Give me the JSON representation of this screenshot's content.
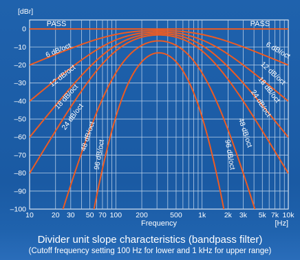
{
  "chart_data": {
    "type": "line",
    "ylabel": "[dBr]",
    "xlabel": "Frequency",
    "xunit": "[Hz]",
    "xscale": "log",
    "xlim": [
      10,
      10000
    ],
    "ylim": [
      -100,
      5
    ],
    "grid": true,
    "yticks": [
      0,
      -10,
      -20,
      -30,
      -40,
      -50,
      -60,
      -70,
      -80,
      -90,
      -100
    ],
    "yticklabels": [
      "0",
      "–10",
      "–20",
      "–30",
      "–40",
      "–50",
      "–60",
      "–70",
      "–80",
      "–90",
      "–100"
    ],
    "xticks": [
      10,
      20,
      30,
      50,
      70,
      100,
      200,
      500,
      1000,
      2000,
      3000,
      5000,
      7000,
      10000
    ],
    "xticklabels": [
      "10",
      "20",
      "30",
      "50",
      "70",
      "100",
      "200",
      "500",
      "1k",
      "2k",
      "3k",
      "5k",
      "7k",
      "10k"
    ],
    "lower_cutoff_hz": 100,
    "upper_cutoff_hz": 1000,
    "slopes_db_per_oct": [
      0,
      6,
      12,
      18,
      24,
      48,
      96
    ],
    "series": [
      {
        "name": "PASS",
        "slope": 0
      },
      {
        "name": "6 dB/oct",
        "slope": 6
      },
      {
        "name": "12 dB/oct",
        "slope": 12
      },
      {
        "name": "18 dB/oct",
        "slope": 18
      },
      {
        "name": "24 dB/oct",
        "slope": 24
      },
      {
        "name": "48 dB/oct",
        "slope": 48
      },
      {
        "name": "96 dB/oct",
        "slope": 96
      }
    ],
    "annotations": {
      "pass_left": "PASS",
      "pass_right": "PASS",
      "low_side": [
        "6 dB/oct",
        "12 dB/oct",
        "18 dB/oct",
        "24 dB/oct",
        "48 dB/oct",
        "96 dB/oct"
      ],
      "high_side": [
        "6 dB/oct",
        "12 dB/oct",
        "18 dB/oct",
        "24 dB/oct",
        "48 dB/oct",
        "96 dB/oct"
      ]
    },
    "colors": {
      "background": "#1a5aa3",
      "grid": "#b8cfe8",
      "curve": "#ee5b22",
      "text": "#ffffff"
    }
  },
  "caption": {
    "title": "Divider unit slope characteristics (bandpass filter)",
    "subtitle": "(Cutoff frequency setting 100 Hz for lower and 1 kHz for upper range)"
  }
}
